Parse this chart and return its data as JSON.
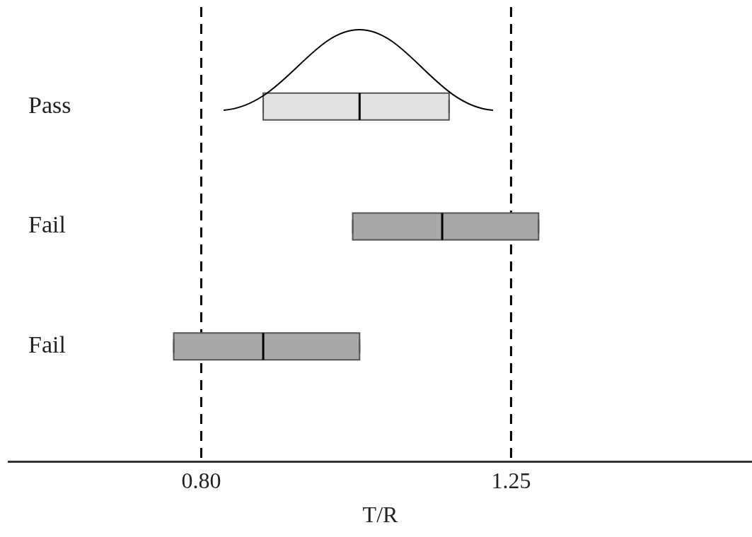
{
  "chart_data": {
    "type": "box",
    "orientation": "horizontal",
    "categories": [
      "Pass",
      "Fail",
      "Fail"
    ],
    "boxes": [
      {
        "low": 0.89,
        "q1": 0.89,
        "median": 1.03,
        "q3": 1.16,
        "high": 1.16
      },
      {
        "low": 1.02,
        "q1": 1.02,
        "median": 1.15,
        "q3": 1.29,
        "high": 1.29
      },
      {
        "low": 0.76,
        "q1": 0.76,
        "median": 0.89,
        "q3": 1.03,
        "high": 1.03
      }
    ],
    "colors": [
      "#e2e2e2",
      "#a8a8a8",
      "#a8a8a8"
    ],
    "xlabel": "T/R",
    "xlim": [
      0.52,
      1.6
    ],
    "xticks": [
      {
        "value": 0.8,
        "label": "0.80"
      },
      1.25
    ],
    "ref_lines": [
      {
        "axis": "x",
        "value": 0.8,
        "line_style": "dashed",
        "color": "#000000"
      },
      {
        "axis": "x",
        "value": 1.25,
        "line_style": "dashed",
        "color": "#000000"
      }
    ],
    "grid": false,
    "legend": false
  }
}
